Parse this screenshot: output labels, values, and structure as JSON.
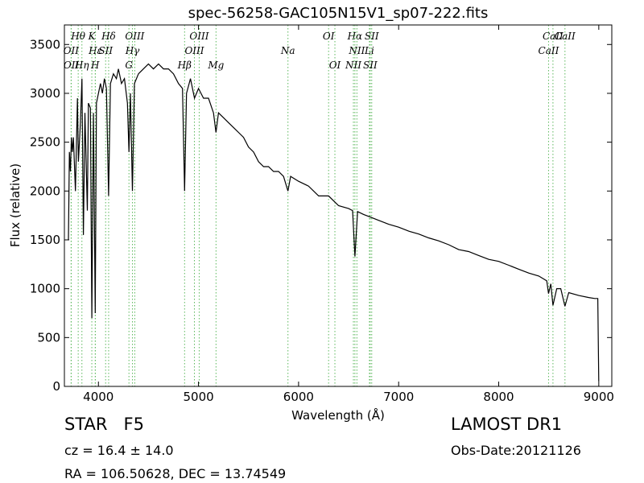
{
  "chart_data": {
    "type": "line",
    "title": "spec-56258-GAC105N15V1_sp07-222.fits",
    "xlabel": "Wavelength (Å)",
    "ylabel": "Flux (relative)",
    "color": "#000000",
    "line_marker_color": "#5cb85c",
    "xlim": [
      3660,
      9130
    ],
    "ylim": [
      0,
      3700
    ],
    "xticks": [
      4000,
      5000,
      6000,
      7000,
      8000,
      9000
    ],
    "yticks": [
      0,
      500,
      1000,
      1500,
      2000,
      2500,
      3000,
      3500
    ],
    "x": [
      3700,
      3710,
      3720,
      3730,
      3740,
      3750,
      3770,
      3790,
      3800,
      3820,
      3835,
      3850,
      3865,
      3889,
      3900,
      3920,
      3934,
      3950,
      3968,
      3980,
      4000,
      4020,
      4040,
      4060,
      4080,
      4102,
      4120,
      4150,
      4180,
      4200,
      4230,
      4260,
      4290,
      4305,
      4320,
      4340,
      4360,
      4400,
      4450,
      4500,
      4550,
      4600,
      4650,
      4700,
      4750,
      4800,
      4840,
      4861,
      4880,
      4920,
      4960,
      5000,
      5050,
      5100,
      5150,
      5175,
      5200,
      5250,
      5300,
      5350,
      5400,
      5450,
      5500,
      5550,
      5600,
      5650,
      5700,
      5750,
      5800,
      5850,
      5894,
      5920,
      6000,
      6100,
      6200,
      6300,
      6400,
      6500,
      6540,
      6563,
      6590,
      6650,
      6700,
      6800,
      6900,
      7000,
      7100,
      7200,
      7300,
      7400,
      7500,
      7600,
      7700,
      7800,
      7900,
      8000,
      8100,
      8200,
      8300,
      8400,
      8480,
      8498,
      8520,
      8542,
      8580,
      8620,
      8662,
      8700,
      8800,
      8900,
      8960,
      8990,
      9000
    ],
    "values": [
      1500,
      2400,
      2200,
      2550,
      2400,
      2550,
      2000,
      2950,
      2300,
      2700,
      3150,
      1550,
      2800,
      1800,
      2900,
      2850,
      700,
      2800,
      750,
      2900,
      3000,
      3100,
      3000,
      3150,
      3050,
      1950,
      3100,
      3200,
      3150,
      3250,
      3100,
      3150,
      2900,
      2400,
      3000,
      2000,
      3100,
      3200,
      3250,
      3300,
      3250,
      3300,
      3250,
      3250,
      3200,
      3100,
      3050,
      2000,
      3000,
      3150,
      2950,
      3050,
      2950,
      2950,
      2800,
      2600,
      2800,
      2750,
      2700,
      2650,
      2600,
      2550,
      2450,
      2400,
      2300,
      2250,
      2250,
      2200,
      2200,
      2150,
      2000,
      2150,
      2100,
      2050,
      1950,
      1950,
      1850,
      1820,
      1800,
      1330,
      1790,
      1760,
      1740,
      1700,
      1660,
      1630,
      1590,
      1560,
      1520,
      1490,
      1450,
      1400,
      1380,
      1340,
      1300,
      1280,
      1240,
      1200,
      1160,
      1130,
      1080,
      950,
      1050,
      830,
      1000,
      1000,
      820,
      960,
      930,
      910,
      900,
      900,
      50
    ],
    "lines": [
      {
        "label": "Hθ",
        "wavelength": 3798
      },
      {
        "label": "OII",
        "wavelength": 3727
      },
      {
        "label": "OII",
        "wavelength": 3729
      },
      {
        "label": "K",
        "wavelength": 3934
      },
      {
        "label": "Hε",
        "wavelength": 3970
      },
      {
        "label": "Hη",
        "wavelength": 3835
      },
      {
        "label": "Hδ",
        "wavelength": 4102
      },
      {
        "label": "SII",
        "wavelength": 4072
      },
      {
        "label": "H",
        "wavelength": 3968
      },
      {
        "label": "OIII",
        "wavelength": 4363
      },
      {
        "label": "Hγ",
        "wavelength": 4340
      },
      {
        "label": "G",
        "wavelength": 4305
      },
      {
        "label": "OIII",
        "wavelength": 5007
      },
      {
        "label": "OIII",
        "wavelength": 4959
      },
      {
        "label": "Hβ",
        "wavelength": 4861
      },
      {
        "label": "OI",
        "wavelength": 6300
      },
      {
        "label": "Na",
        "wavelength": 5894
      },
      {
        "label": "Mg",
        "wavelength": 5175
      },
      {
        "label": "Hα",
        "wavelength": 6563
      },
      {
        "label": "NII",
        "wavelength": 6583
      },
      {
        "label": "OI",
        "wavelength": 6363
      },
      {
        "label": "SII",
        "wavelength": 6731
      },
      {
        "label": "Li",
        "wavelength": 6708
      },
      {
        "label": "NII",
        "wavelength": 6548
      },
      {
        "label": "CaII",
        "wavelength": 8542
      },
      {
        "label": "CaII",
        "wavelength": 8498
      },
      {
        "label": "SII",
        "wavelength": 6716
      },
      {
        "label": "CaII",
        "wavelength": 8662
      }
    ]
  },
  "info": {
    "object": "STAR   F5",
    "cz": "cz = 16.4 ± 14.0",
    "coords": "RA = 106.50628, DEC = 13.74549",
    "survey": "LAMOST DR1",
    "date": "Obs-Date:20121126"
  }
}
